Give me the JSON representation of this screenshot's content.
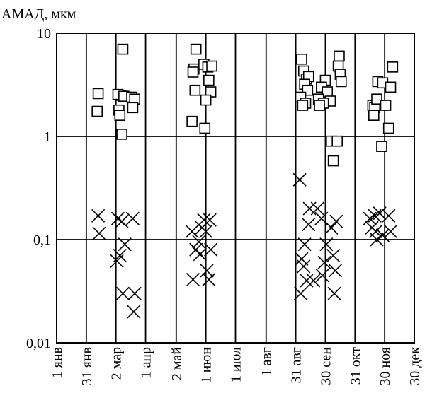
{
  "chart_data": {
    "type": "scatter",
    "title": "",
    "ylabel": "АМАД, мкм",
    "xlabel": "",
    "y_scale": "log",
    "ylim": [
      0.01,
      10
    ],
    "y_ticks": [
      {
        "value": 10,
        "label": "10"
      },
      {
        "value": 1,
        "label": "1"
      },
      {
        "value": 0.1,
        "label": "0,1"
      },
      {
        "value": 0.01,
        "label": "0,01"
      }
    ],
    "x_ticks": [
      {
        "day": 0,
        "label": "1 янв"
      },
      {
        "day": 30,
        "label": "31 янв"
      },
      {
        "day": 60,
        "label": "2 мар"
      },
      {
        "day": 90,
        "label": "1 апр"
      },
      {
        "day": 121,
        "label": "2 май"
      },
      {
        "day": 151,
        "label": "1 июн"
      },
      {
        "day": 181,
        "label": "1 июл"
      },
      {
        "day": 212,
        "label": "1 авг"
      },
      {
        "day": 242,
        "label": "31 авг"
      },
      {
        "day": 272,
        "label": "30 сен"
      },
      {
        "day": 302,
        "label": "31 окт"
      },
      {
        "day": 332,
        "label": "30 ноя"
      },
      {
        "day": 362,
        "label": "30 дек"
      }
    ],
    "xlim": [
      0,
      362
    ],
    "grid": true,
    "series": [
      {
        "marker": "square",
        "points": [
          [
            42,
            2.6
          ],
          [
            41,
            1.75
          ],
          [
            67,
            7.0
          ],
          [
            65,
            2.5
          ],
          [
            62,
            2.55
          ],
          [
            68,
            2.45
          ],
          [
            63,
            1.8
          ],
          [
            64,
            1.6
          ],
          [
            66,
            1.05
          ],
          [
            76,
            2.4
          ],
          [
            79,
            2.3
          ],
          [
            77,
            1.9
          ],
          [
            141,
            7.0
          ],
          [
            139,
            4.5
          ],
          [
            138,
            4.2
          ],
          [
            149,
            5.0
          ],
          [
            153,
            4.7
          ],
          [
            157,
            4.8
          ],
          [
            154,
            3.5
          ],
          [
            140,
            2.8
          ],
          [
            156,
            2.7
          ],
          [
            151,
            2.25
          ],
          [
            137,
            1.4
          ],
          [
            150,
            1.2
          ],
          [
            248,
            5.6
          ],
          [
            250,
            4.3
          ],
          [
            253,
            3.6
          ],
          [
            255,
            3.8
          ],
          [
            251,
            3.2
          ],
          [
            254,
            2.8
          ],
          [
            247,
            2.4
          ],
          [
            252,
            2.1
          ],
          [
            249,
            2.0
          ],
          [
            272,
            3.5
          ],
          [
            268,
            3.0
          ],
          [
            274,
            2.7
          ],
          [
            265,
            2.3
          ],
          [
            277,
            2.2
          ],
          [
            270,
            2.1
          ],
          [
            266,
            2.0
          ],
          [
            278,
            0.9
          ],
          [
            284,
            0.9
          ],
          [
            280,
            0.58
          ],
          [
            286,
            6.0
          ],
          [
            285,
            4.8
          ],
          [
            287,
            4.0
          ],
          [
            288,
            3.4
          ],
          [
            325,
            3.4
          ],
          [
            330,
            3.3
          ],
          [
            320,
            2.0
          ],
          [
            322,
            1.9
          ],
          [
            324,
            2.3
          ],
          [
            333,
            2.0
          ],
          [
            321,
            1.6
          ],
          [
            336,
            1.2
          ],
          [
            329,
            0.8
          ],
          [
            340,
            4.7
          ],
          [
            338,
            3.0
          ]
        ]
      },
      {
        "marker": "x",
        "points": [
          [
            42,
            0.17
          ],
          [
            43,
            0.115
          ],
          [
            62,
            0.16
          ],
          [
            66,
            0.15
          ],
          [
            69,
            0.09
          ],
          [
            64,
            0.07
          ],
          [
            61,
            0.062
          ],
          [
            67,
            0.03
          ],
          [
            77,
            0.16
          ],
          [
            79,
            0.03
          ],
          [
            78,
            0.02
          ],
          [
            137,
            0.12
          ],
          [
            144,
            0.095
          ],
          [
            141,
            0.08
          ],
          [
            145,
            0.072
          ],
          [
            138,
            0.041
          ],
          [
            147,
            0.13
          ],
          [
            151,
            0.12
          ],
          [
            155,
            0.155
          ],
          [
            156,
            0.08
          ],
          [
            152,
            0.05
          ],
          [
            154,
            0.041
          ],
          [
            149,
            0.155
          ],
          [
            246,
            0.38
          ],
          [
            248,
            0.065
          ],
          [
            251,
            0.09
          ],
          [
            255,
            0.14
          ],
          [
            256,
            0.2
          ],
          [
            250,
            0.055
          ],
          [
            253,
            0.04
          ],
          [
            247,
            0.03
          ],
          [
            260,
            0.04
          ],
          [
            264,
            0.2
          ],
          [
            268,
            0.16
          ],
          [
            273,
            0.09
          ],
          [
            271,
            0.06
          ],
          [
            269,
            0.045
          ],
          [
            278,
            0.13
          ],
          [
            280,
            0.07
          ],
          [
            282,
            0.05
          ],
          [
            283,
            0.15
          ],
          [
            281,
            0.03
          ],
          [
            317,
            0.16
          ],
          [
            322,
            0.17
          ],
          [
            327,
            0.18
          ],
          [
            323,
            0.12
          ],
          [
            330,
            0.11
          ],
          [
            319,
            0.13
          ],
          [
            336,
            0.17
          ],
          [
            338,
            0.12
          ],
          [
            324,
            0.1
          ]
        ]
      }
    ]
  }
}
